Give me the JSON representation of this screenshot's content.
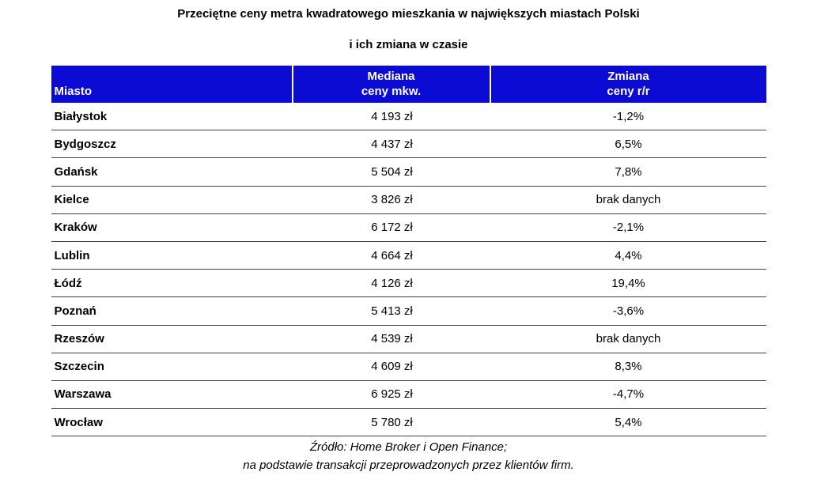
{
  "title": {
    "line1": "Przeciętne ceny metra kwadratowego mieszkania w największych miastach Polski",
    "line2": "i ich zmiana w czasie"
  },
  "table": {
    "headers": {
      "city": "Miasto",
      "median_line1": "Mediana",
      "median_line2": "ceny mkw.",
      "change_line1": "Zmiana",
      "change_line2": "ceny r/r"
    },
    "rows": [
      {
        "city": "Białystok",
        "median": "4 193 zł",
        "change": "-1,2%"
      },
      {
        "city": "Bydgoszcz",
        "median": "4 437 zł",
        "change": "6,5%"
      },
      {
        "city": "Gdańsk",
        "median": "5 504 zł",
        "change": "7,8%"
      },
      {
        "city": "Kielce",
        "median": "3 826 zł",
        "change": "brak danych"
      },
      {
        "city": "Kraków",
        "median": "6 172 zł",
        "change": "-2,1%"
      },
      {
        "city": "Lublin",
        "median": "4 664 zł",
        "change": "4,4%"
      },
      {
        "city": "Łódź",
        "median": "4 126 zł",
        "change": "19,4%"
      },
      {
        "city": "Poznań",
        "median": "5 413 zł",
        "change": "-3,6%"
      },
      {
        "city": "Rzeszów",
        "median": "4 539 zł",
        "change": "brak danych"
      },
      {
        "city": "Szczecin",
        "median": "4 609 zł",
        "change": "8,3%"
      },
      {
        "city": "Warszawa",
        "median": "6 925 zł",
        "change": "-4,7%"
      },
      {
        "city": "Wrocław",
        "median": "5 780 zł",
        "change": "5,4%"
      }
    ]
  },
  "source": {
    "line1": "Źródło: Home Broker i Open Finance;",
    "line2": "na podstawie transakcji przeprowadzonych przez klientów firm."
  },
  "colors": {
    "header_bg": "#0b0bd4",
    "header_text": "#ffffff",
    "row_border": "#3f3f3f"
  },
  "chart_data": {
    "type": "table",
    "title": "Przeciętne ceny metra kwadratowego mieszkania w największych miastach Polski i ich zmiana w czasie",
    "columns": [
      "Miasto",
      "Mediana ceny mkw.",
      "Zmiana ceny r/r"
    ],
    "rows": [
      [
        "Białystok",
        "4 193 zł",
        "-1,2%"
      ],
      [
        "Bydgoszcz",
        "4 437 zł",
        "6,5%"
      ],
      [
        "Gdańsk",
        "5 504 zł",
        "7,8%"
      ],
      [
        "Kielce",
        "3 826 zł",
        "brak danych"
      ],
      [
        "Kraków",
        "6 172 zł",
        "-2,1%"
      ],
      [
        "Lublin",
        "4 664 zł",
        "4,4%"
      ],
      [
        "Łódź",
        "4 126 zł",
        "19,4%"
      ],
      [
        "Poznań",
        "5 413 zł",
        "-3,6%"
      ],
      [
        "Rzeszów",
        "4 539 zł",
        "brak danych"
      ],
      [
        "Szczecin",
        "4 609 zł",
        "8,3%"
      ],
      [
        "Warszawa",
        "6 925 zł",
        "-4,7%"
      ],
      [
        "Wrocław",
        "5 780 zł",
        "5,4%"
      ]
    ],
    "source": "Źródło: Home Broker i Open Finance; na podstawie transakcji przeprowadzonych przez klientów firm.",
    "legend_position": "none",
    "grid": "horizontal-row-rules"
  }
}
